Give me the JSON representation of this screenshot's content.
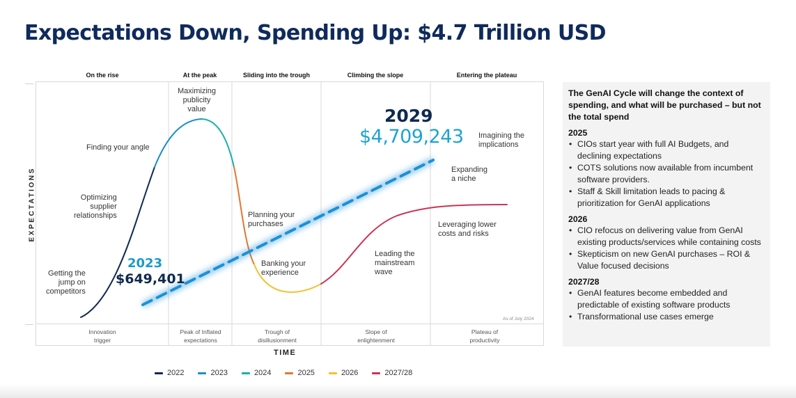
{
  "title": "Expectations Down, Spending Up: $4.7 Trillion USD",
  "chart_data": {
    "type": "line",
    "title": "Expectations Down, Spending Up: $4.7 Trillion USD",
    "xlabel": "TIME",
    "ylabel": "EXPECTATIONS",
    "grid": "vertical phase dividers",
    "phases_top": [
      "On the rise",
      "At the peak",
      "Sliding into the trough",
      "Climbing the slope",
      "Entering the plateau"
    ],
    "phases_bottom": [
      "Innovation trigger",
      "Peak of Inflated expectations",
      "Trough of disillusionment",
      "Slope of enlightenment",
      "Plateau of productivity"
    ],
    "series": [
      {
        "name": "2022",
        "color": "#0f2a4f"
      },
      {
        "name": "2023",
        "color": "#1a8fc4"
      },
      {
        "name": "2024",
        "color": "#1ab0a8"
      },
      {
        "name": "2025",
        "color": "#e0782e"
      },
      {
        "name": "2026",
        "color": "#f2c230"
      },
      {
        "name": "2027/28",
        "color": "#cc3355"
      }
    ],
    "spending_trend": {
      "color": "#1b90d8",
      "points": [
        {
          "year": "2023",
          "value_label": "$649,401",
          "value": 649401
        },
        {
          "year": "2029",
          "value_label": "$4,709,243",
          "value": 4709243
        }
      ]
    },
    "annotations": [
      "Getting the jump on competitors",
      "Optimizing supplier relationships",
      "Finding your angle",
      "Maximizing publicity value",
      "Planning your purchases",
      "Banking your experience",
      "Leading the mainstream wave",
      "Leveraging lower costs and risks",
      "Expanding a niche",
      "Imagining the implications"
    ],
    "note": "As of July 2024",
    "legend_position": "bottom"
  },
  "labels": {
    "getting_jump": [
      "Getting the",
      "jump on",
      "competitors"
    ],
    "optimizing": [
      "Optimizing",
      "supplier",
      "relationships"
    ],
    "finding": "Finding your angle",
    "maximizing": [
      "Maximizing",
      "publicity",
      "value"
    ],
    "planning": [
      "Planning your",
      "purchases"
    ],
    "banking": [
      "Banking your",
      "experience"
    ],
    "leading": [
      "Leading the",
      "mainstream",
      "wave"
    ],
    "leveraging": [
      "Leveraging lower",
      "costs and risks"
    ],
    "expanding": [
      "Expanding",
      "a niche"
    ],
    "imagining": [
      "Imagining the",
      "implications"
    ],
    "year_2023": "2023",
    "value_2023": "$649,401",
    "year_2029": "2029",
    "value_2029": "$4,709,243"
  },
  "sidebar": {
    "heading": "The GenAI Cycle will change the context of spending, and what will be purchased – but not the total spend",
    "sections": [
      {
        "year": "2025",
        "bullets": [
          "CIOs start year with full AI Budgets, and declining expectations",
          "COTS solutions now available from incumbent software providers.",
          "Staff & Skill limitation leads to pacing & prioritization for GenAI applications"
        ]
      },
      {
        "year": "2026",
        "bullets": [
          "CIO refocus on delivering value from GenAI existing products/services while containing costs",
          "Skepticism on new GenAI purchases – ROI & Value focused decisions"
        ]
      },
      {
        "year": "2027/28",
        "bullets": [
          "GenAI features become embedded and predictable of existing software products",
          "Transformational use cases emerge"
        ]
      }
    ]
  }
}
